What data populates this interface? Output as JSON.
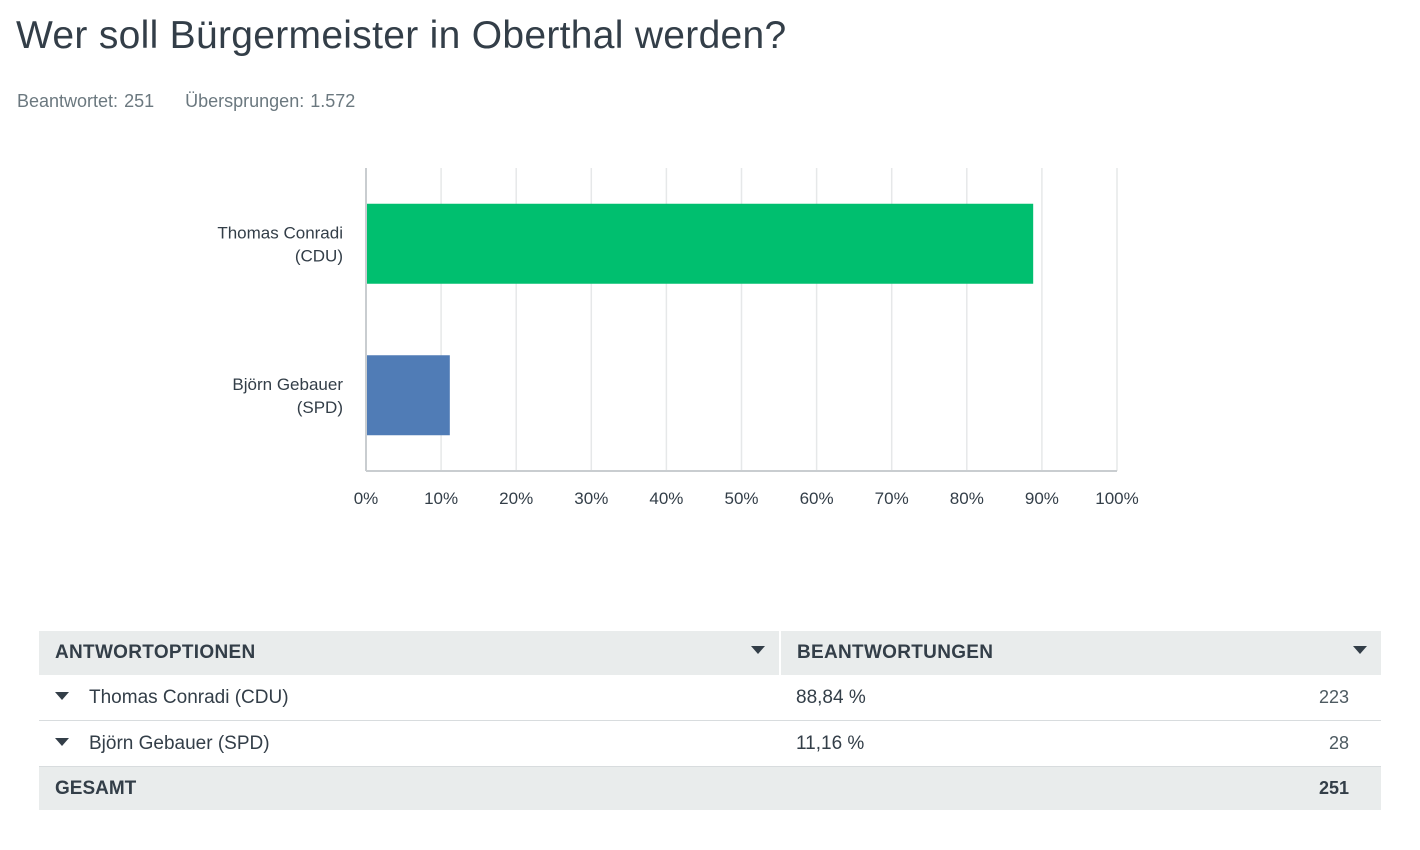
{
  "question": {
    "title": "Wer soll Bürgermeister in Oberthal werden?",
    "answered_label": "Beantwortet:",
    "answered_value": "251",
    "skipped_label": "Übersprungen:",
    "skipped_value": "1.572"
  },
  "chart_data": {
    "type": "bar",
    "orientation": "horizontal",
    "categories": [
      [
        "Thomas Conradi",
        "(CDU)"
      ],
      [
        "Björn Gebauer",
        "(SPD)"
      ]
    ],
    "values": [
      88.84,
      11.16
    ],
    "colors": [
      "#00bf6f",
      "#507cb6"
    ],
    "xlim": [
      0,
      100
    ],
    "xticks": [
      "0%",
      "10%",
      "20%",
      "30%",
      "40%",
      "50%",
      "60%",
      "70%",
      "80%",
      "90%",
      "100%"
    ],
    "grid": true
  },
  "table": {
    "headers": {
      "options": "ANTWORTOPTIONEN",
      "responses": "BEANTWORTUNGEN"
    },
    "rows": [
      {
        "label": "Thomas Conradi (CDU)",
        "percent": "88,84 %",
        "count": "223"
      },
      {
        "label": "Björn Gebauer (SPD)",
        "percent": "11,16 %",
        "count": "28"
      }
    ],
    "total": {
      "label": "GESAMT",
      "count": "251"
    }
  }
}
